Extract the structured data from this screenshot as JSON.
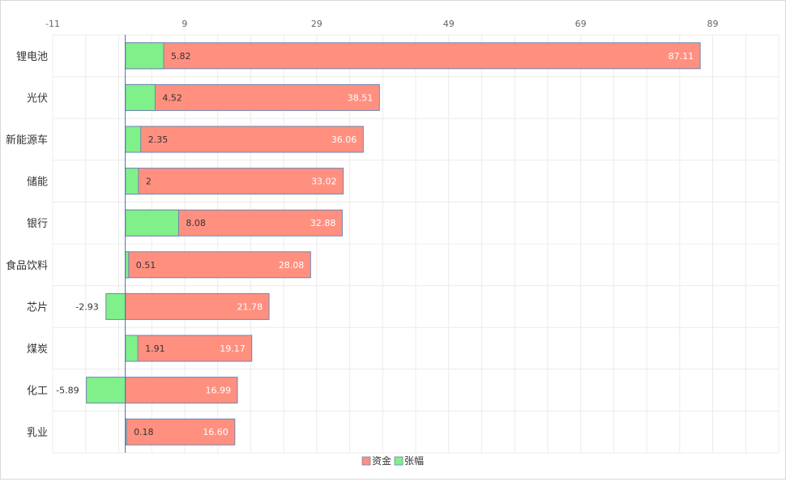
{
  "chart_data": {
    "type": "bar",
    "orientation": "horizontal",
    "stacked": "overlay",
    "title": "",
    "xlabel": "",
    "ylabel": "",
    "xlim": [
      -11,
      99
    ],
    "x_tick_labels": [
      "-11",
      "9",
      "29",
      "49",
      "69",
      "89"
    ],
    "categories": [
      "锂电池",
      "光伏",
      "新能源车",
      "储能",
      "银行",
      "食品饮料",
      "芯片",
      "煤炭",
      "化工",
      "乳业"
    ],
    "series": [
      {
        "name": "资金",
        "color": "#ff9080",
        "values": [
          87.11,
          38.51,
          36.06,
          33.02,
          32.88,
          28.08,
          21.78,
          19.17,
          16.99,
          16.6
        ],
        "labels": [
          "87.11",
          "38.51",
          "36.06",
          "33.02",
          "32.88",
          "28.08",
          "21.78",
          "19.17",
          "16.99",
          "16.60"
        ]
      },
      {
        "name": "张幅",
        "color": "#80f08a",
        "values": [
          5.82,
          4.52,
          2.35,
          2,
          8.08,
          0.51,
          -2.93,
          1.91,
          -5.89,
          0.18
        ],
        "labels": [
          "5.82",
          "4.52",
          "2.35",
          "2",
          "8.08",
          "0.51",
          "-2.93",
          "1.91",
          "-5.89",
          "0.18"
        ]
      }
    ],
    "grid": true,
    "legend_position": "bottom-center",
    "colors": {
      "border": "#6f86b0",
      "zero_line": "#4a6fb5",
      "grid": "#ececec",
      "tick_text": "#666666",
      "category_text": "#333333",
      "inner_label_text": "#ffffff",
      "outer_label_text": "#333333"
    }
  }
}
